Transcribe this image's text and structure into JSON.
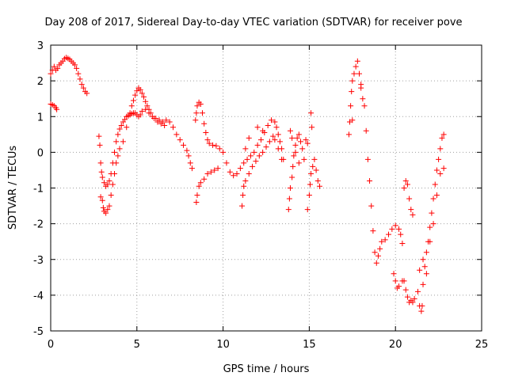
{
  "chart_data": {
    "type": "scatter",
    "title": "Day 208 of 2017, Sidereal Day-to-day VTEC variation (SDTVAR) for receiver pove",
    "xlabel": "GPS time / hours",
    "ylabel": "SDTVAR / TECUs",
    "xlim": [
      0,
      25
    ],
    "ylim": [
      -5,
      3
    ],
    "xticks": [
      0,
      5,
      10,
      15,
      20,
      25
    ],
    "yticks": [
      -5,
      -4,
      -3,
      -2,
      -1,
      0,
      1,
      2,
      3
    ],
    "grid": true,
    "marker": "plus",
    "color": "#ff0000",
    "series": [
      {
        "points": [
          [
            0.0,
            2.2
          ],
          [
            0.1,
            2.3
          ],
          [
            0.2,
            2.4
          ],
          [
            0.3,
            2.3
          ],
          [
            0.4,
            2.35
          ],
          [
            0.5,
            2.45
          ],
          [
            0.6,
            2.5
          ],
          [
            0.7,
            2.55
          ],
          [
            0.8,
            2.62
          ],
          [
            0.9,
            2.65
          ],
          [
            1.0,
            2.63
          ],
          [
            1.1,
            2.6
          ],
          [
            1.2,
            2.55
          ],
          [
            1.3,
            2.5
          ],
          [
            1.4,
            2.45
          ],
          [
            1.5,
            2.35
          ],
          [
            1.6,
            2.2
          ],
          [
            1.7,
            2.05
          ],
          [
            1.8,
            1.9
          ],
          [
            1.9,
            1.8
          ],
          [
            2.0,
            1.7
          ],
          [
            2.1,
            1.65
          ],
          [
            0.0,
            1.35
          ],
          [
            0.1,
            1.33
          ],
          [
            0.2,
            1.3
          ],
          [
            0.3,
            1.25
          ],
          [
            0.35,
            1.2
          ],
          [
            2.8,
            0.45
          ],
          [
            2.85,
            0.2
          ],
          [
            2.9,
            -0.3
          ],
          [
            2.95,
            -0.55
          ],
          [
            3.0,
            -0.7
          ],
          [
            3.1,
            -0.85
          ],
          [
            3.2,
            -0.95
          ],
          [
            3.3,
            -0.9
          ],
          [
            3.4,
            -0.8
          ],
          [
            3.5,
            -0.6
          ],
          [
            3.6,
            -0.3
          ],
          [
            3.7,
            0.0
          ],
          [
            3.8,
            0.3
          ],
          [
            3.9,
            0.5
          ],
          [
            4.0,
            0.65
          ],
          [
            4.1,
            0.75
          ],
          [
            4.2,
            0.85
          ],
          [
            4.3,
            0.92
          ],
          [
            4.4,
            1.0
          ],
          [
            4.5,
            1.02
          ],
          [
            4.6,
            1.05
          ],
          [
            4.7,
            1.08
          ],
          [
            4.8,
            1.1
          ],
          [
            4.9,
            1.1
          ],
          [
            5.0,
            1.05
          ],
          [
            5.1,
            1.0
          ],
          [
            5.2,
            1.05
          ],
          [
            5.3,
            1.15
          ],
          [
            5.5,
            1.2
          ],
          [
            5.7,
            1.1
          ],
          [
            5.9,
            1.0
          ],
          [
            6.1,
            0.95
          ],
          [
            6.3,
            0.9
          ],
          [
            6.5,
            0.85
          ],
          [
            6.7,
            0.9
          ],
          [
            6.9,
            0.85
          ],
          [
            7.1,
            0.7
          ],
          [
            7.3,
            0.5
          ],
          [
            7.5,
            0.35
          ],
          [
            7.7,
            0.2
          ],
          [
            7.9,
            0.05
          ],
          [
            8.0,
            -0.1
          ],
          [
            8.1,
            -0.3
          ],
          [
            8.2,
            -0.45
          ],
          [
            2.9,
            -1.25
          ],
          [
            3.0,
            -1.35
          ],
          [
            3.05,
            -1.55
          ],
          [
            3.1,
            -1.65
          ],
          [
            3.2,
            -1.7
          ],
          [
            3.3,
            -1.6
          ],
          [
            3.4,
            -1.5
          ],
          [
            3.5,
            -1.2
          ],
          [
            3.6,
            -0.9
          ],
          [
            3.7,
            -0.6
          ],
          [
            3.8,
            -0.3
          ],
          [
            3.9,
            -0.1
          ],
          [
            4.0,
            0.1
          ],
          [
            4.2,
            0.3
          ],
          [
            4.4,
            0.7
          ],
          [
            4.6,
            1.1
          ],
          [
            4.7,
            1.3
          ],
          [
            4.8,
            1.45
          ],
          [
            4.9,
            1.6
          ],
          [
            5.0,
            1.72
          ],
          [
            5.1,
            1.8
          ],
          [
            5.2,
            1.75
          ],
          [
            5.3,
            1.65
          ],
          [
            5.4,
            1.55
          ],
          [
            5.5,
            1.42
          ],
          [
            5.6,
            1.3
          ],
          [
            5.7,
            1.2
          ],
          [
            5.8,
            1.1
          ],
          [
            6.0,
            0.95
          ],
          [
            6.2,
            0.85
          ],
          [
            6.4,
            0.8
          ],
          [
            6.6,
            0.75
          ],
          [
            8.4,
            0.9
          ],
          [
            8.45,
            1.1
          ],
          [
            8.5,
            1.3
          ],
          [
            8.6,
            1.4
          ],
          [
            8.7,
            1.35
          ],
          [
            8.8,
            1.1
          ],
          [
            8.9,
            0.8
          ],
          [
            9.0,
            0.55
          ],
          [
            9.1,
            0.35
          ],
          [
            9.2,
            0.25
          ],
          [
            9.4,
            0.2
          ],
          [
            9.6,
            0.18
          ],
          [
            9.8,
            0.1
          ],
          [
            10.0,
            0.0
          ],
          [
            10.2,
            -0.3
          ],
          [
            10.4,
            -0.55
          ],
          [
            10.6,
            -0.65
          ],
          [
            10.8,
            -0.6
          ],
          [
            11.0,
            -0.45
          ],
          [
            8.45,
            -1.4
          ],
          [
            8.5,
            -1.2
          ],
          [
            8.6,
            -0.95
          ],
          [
            8.7,
            -0.85
          ],
          [
            8.9,
            -0.75
          ],
          [
            9.1,
            -0.6
          ],
          [
            9.3,
            -0.55
          ],
          [
            9.5,
            -0.5
          ],
          [
            9.7,
            -0.45
          ],
          [
            11.2,
            -0.3
          ],
          [
            11.4,
            -0.2
          ],
          [
            11.6,
            -0.1
          ],
          [
            11.8,
            0.0
          ],
          [
            12.0,
            0.2
          ],
          [
            12.2,
            0.35
          ],
          [
            12.4,
            0.55
          ],
          [
            12.6,
            0.75
          ],
          [
            12.8,
            0.9
          ],
          [
            13.0,
            0.85
          ],
          [
            13.1,
            0.7
          ],
          [
            13.2,
            0.5
          ],
          [
            13.3,
            0.3
          ],
          [
            13.4,
            0.1
          ],
          [
            13.5,
            -0.2
          ],
          [
            11.1,
            -1.5
          ],
          [
            11.15,
            -1.2
          ],
          [
            11.2,
            -0.95
          ],
          [
            11.3,
            -0.8
          ],
          [
            11.5,
            -0.6
          ],
          [
            11.7,
            -0.4
          ],
          [
            11.9,
            -0.25
          ],
          [
            12.1,
            -0.1
          ],
          [
            12.3,
            0.0
          ],
          [
            12.5,
            0.15
          ],
          [
            12.7,
            0.3
          ],
          [
            12.9,
            0.45
          ],
          [
            13.0,
            0.35
          ],
          [
            13.2,
            0.1
          ],
          [
            13.4,
            -0.2
          ],
          [
            11.3,
            0.1
          ],
          [
            11.5,
            0.4
          ],
          [
            12.0,
            0.7
          ],
          [
            12.3,
            0.6
          ],
          [
            13.8,
            -1.6
          ],
          [
            13.85,
            -1.3
          ],
          [
            13.9,
            -1.0
          ],
          [
            14.0,
            -0.7
          ],
          [
            14.05,
            -0.4
          ],
          [
            14.1,
            -0.1
          ],
          [
            14.2,
            0.2
          ],
          [
            14.3,
            0.4
          ],
          [
            14.4,
            0.5
          ],
          [
            14.5,
            0.3
          ],
          [
            14.6,
            0.1
          ],
          [
            14.7,
            -0.2
          ],
          [
            14.8,
            0.35
          ],
          [
            14.9,
            0.25
          ],
          [
            13.9,
            0.6
          ],
          [
            14.0,
            0.4
          ],
          [
            14.2,
            0.0
          ],
          [
            14.4,
            -0.3
          ],
          [
            14.9,
            -1.6
          ],
          [
            15.0,
            -1.2
          ],
          [
            15.05,
            -0.9
          ],
          [
            15.1,
            -0.6
          ],
          [
            15.2,
            -0.4
          ],
          [
            15.3,
            -0.2
          ],
          [
            15.4,
            -0.5
          ],
          [
            15.5,
            -0.8
          ],
          [
            15.6,
            -0.95
          ],
          [
            15.1,
            1.1
          ],
          [
            15.15,
            0.7
          ],
          [
            17.3,
            0.5
          ],
          [
            17.35,
            0.85
          ],
          [
            17.4,
            1.3
          ],
          [
            17.45,
            1.7
          ],
          [
            17.5,
            2.0
          ],
          [
            17.6,
            2.2
          ],
          [
            17.7,
            2.4
          ],
          [
            17.8,
            2.55
          ],
          [
            17.9,
            2.2
          ],
          [
            18.0,
            1.8
          ],
          [
            18.1,
            1.5
          ],
          [
            18.2,
            1.3
          ],
          [
            18.3,
            0.6
          ],
          [
            18.4,
            -0.2
          ],
          [
            18.5,
            -0.8
          ],
          [
            18.6,
            -1.5
          ],
          [
            18.7,
            -2.2
          ],
          [
            18.8,
            -2.8
          ],
          [
            18.9,
            -3.1
          ],
          [
            19.0,
            -2.9
          ],
          [
            19.1,
            -2.7
          ],
          [
            19.2,
            -2.5
          ],
          [
            19.4,
            -2.45
          ],
          [
            19.6,
            -2.3
          ],
          [
            19.8,
            -2.15
          ],
          [
            20.0,
            -2.05
          ],
          [
            20.2,
            -2.15
          ],
          [
            20.3,
            -2.3
          ],
          [
            20.4,
            -2.55
          ],
          [
            17.5,
            0.9
          ],
          [
            18.0,
            1.9
          ],
          [
            19.9,
            -3.4
          ],
          [
            20.0,
            -3.6
          ],
          [
            20.1,
            -3.8
          ],
          [
            20.2,
            -3.75
          ],
          [
            20.4,
            -3.6
          ],
          [
            20.5,
            -3.6
          ],
          [
            20.6,
            -3.85
          ],
          [
            20.7,
            -4.05
          ],
          [
            20.8,
            -4.2
          ],
          [
            20.9,
            -4.15
          ],
          [
            21.0,
            -4.2
          ],
          [
            21.1,
            -4.1
          ],
          [
            20.5,
            -1.0
          ],
          [
            20.6,
            -0.8
          ],
          [
            20.7,
            -0.9
          ],
          [
            20.8,
            -1.3
          ],
          [
            20.9,
            -1.6
          ],
          [
            21.0,
            -1.75
          ],
          [
            21.3,
            -3.9
          ],
          [
            21.4,
            -4.3
          ],
          [
            21.5,
            -4.45
          ],
          [
            21.55,
            -4.3
          ],
          [
            21.6,
            -3.7
          ],
          [
            21.7,
            -3.2
          ],
          [
            21.8,
            -2.8
          ],
          [
            21.9,
            -2.5
          ],
          [
            22.0,
            -2.1
          ],
          [
            22.1,
            -1.7
          ],
          [
            22.2,
            -1.3
          ],
          [
            22.3,
            -0.9
          ],
          [
            22.4,
            -0.5
          ],
          [
            22.5,
            -0.2
          ],
          [
            22.6,
            0.1
          ],
          [
            22.7,
            0.4
          ],
          [
            22.8,
            0.5
          ],
          [
            21.4,
            -3.3
          ],
          [
            21.6,
            -3.0
          ],
          [
            21.8,
            -3.4
          ],
          [
            22.0,
            -2.5
          ],
          [
            22.2,
            -2.0
          ],
          [
            22.4,
            -1.2
          ],
          [
            22.6,
            -0.6
          ],
          [
            22.8,
            -0.45
          ]
        ]
      }
    ]
  }
}
